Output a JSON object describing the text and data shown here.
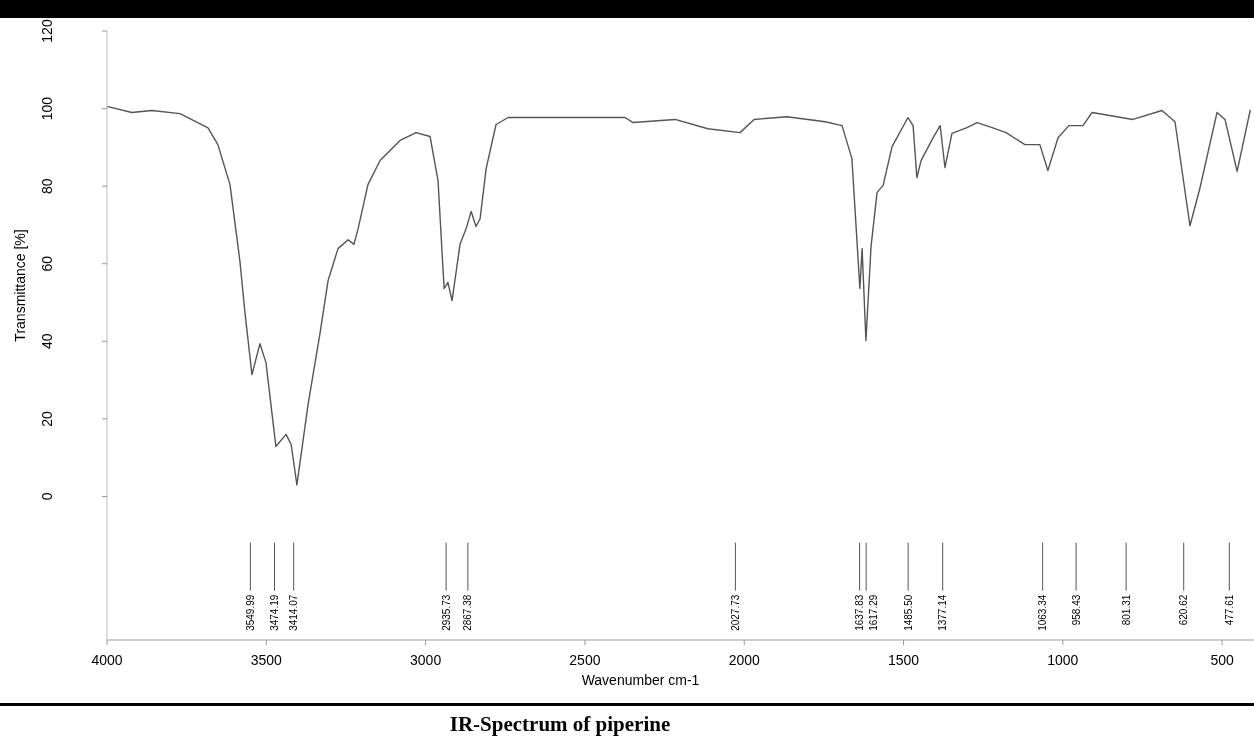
{
  "chart_data": {
    "type": "line",
    "title": "IR-Spectrum of piperine",
    "xlabel": "Wavenumber cm-1",
    "ylabel": "Transmittance [%]",
    "xlim": [
      4000,
      400
    ],
    "ylim": [
      -37,
      120
    ],
    "xticks": [
      4000,
      3500,
      3000,
      2500,
      2000,
      1500,
      1000,
      500
    ],
    "yticks": [
      0,
      20,
      40,
      60,
      80,
      100,
      120
    ],
    "grid": false,
    "marker": "none",
    "line_style": "solid",
    "series": [
      {
        "color": "#555555",
        "x": [
          3997,
          3922,
          3859,
          3771,
          3683,
          3652,
          3614,
          3583,
          3567,
          3545,
          3520,
          3501,
          3470,
          3438,
          3422,
          3404,
          3369,
          3331,
          3306,
          3275,
          3243,
          3225,
          3212,
          3181,
          3143,
          3080,
          3030,
          2986,
          2961,
          2942,
          2930,
          2917,
          2892,
          2873,
          2857,
          2842,
          2829,
          2810,
          2779,
          2741,
          2452,
          2374,
          2349,
          2217,
          2114,
          2013,
          1969,
          1866,
          1746,
          1693,
          1662,
          1637,
          1630,
          1618,
          1602,
          1583,
          1564,
          1536,
          1486,
          1470,
          1458,
          1445,
          1407,
          1385,
          1370,
          1348,
          1301,
          1269,
          1222,
          1178,
          1119,
          1072,
          1047,
          1015,
          981,
          937,
          908,
          780,
          689,
          648,
          601,
          570,
          516,
          491,
          453,
          412
        ],
        "values": [
          100.5,
          99,
          99.5,
          98.7,
          95,
          90.7,
          80.4,
          60.8,
          47.4,
          31.4,
          39.4,
          34.5,
          12.9,
          16,
          13.4,
          3,
          23.7,
          42.3,
          55.7,
          63.9,
          66.2,
          65,
          69,
          80.4,
          86.6,
          91.8,
          93.8,
          92.8,
          81.4,
          53.6,
          55.2,
          50.5,
          65,
          69,
          73.5,
          69.6,
          71.6,
          84.5,
          95.9,
          97.7,
          97.7,
          97.7,
          96.4,
          97.2,
          94.8,
          93.8,
          97.2,
          97.9,
          96.6,
          95.6,
          87.1,
          53.6,
          63.9,
          40.2,
          64.4,
          78.4,
          80.2,
          90.2,
          97.7,
          95.6,
          82.2,
          86.6,
          92.5,
          95.6,
          84.8,
          93.6,
          95.1,
          96.4,
          95.1,
          93.8,
          90.7,
          90.7,
          84,
          92.5,
          95.6,
          95.6,
          99,
          97.2,
          99.5,
          96.6,
          69.8,
          79.4,
          99,
          97.2,
          83.8,
          99.5
        ]
      }
    ],
    "ref_lines": [
      {
        "axis": "x",
        "value": 3549.99,
        "label": "3549.99"
      },
      {
        "axis": "x",
        "value": 3474.19,
        "label": "3474.19"
      },
      {
        "axis": "x",
        "value": 3414.07,
        "label": "3414.07"
      },
      {
        "axis": "x",
        "value": 2935.73,
        "label": "2935.73"
      },
      {
        "axis": "x",
        "value": 2867.38,
        "label": "2867.38"
      },
      {
        "axis": "x",
        "value": 2027.73,
        "label": "2027.73"
      },
      {
        "axis": "x",
        "value": 1637.83,
        "label": "1637.83"
      },
      {
        "axis": "x",
        "value": 1617.29,
        "label": "1617.29"
      },
      {
        "axis": "x",
        "value": 1485.5,
        "label": "1485.50"
      },
      {
        "axis": "x",
        "value": 1377.14,
        "label": "1377.14"
      },
      {
        "axis": "x",
        "value": 1063.34,
        "label": "1063.34"
      },
      {
        "axis": "x",
        "value": 958.43,
        "label": "958.43"
      },
      {
        "axis": "x",
        "value": 801.31,
        "label": "801.31"
      },
      {
        "axis": "x",
        "value": 620.62,
        "label": "620.62"
      },
      {
        "axis": "x",
        "value": 477.61,
        "label": "477.61"
      }
    ]
  }
}
